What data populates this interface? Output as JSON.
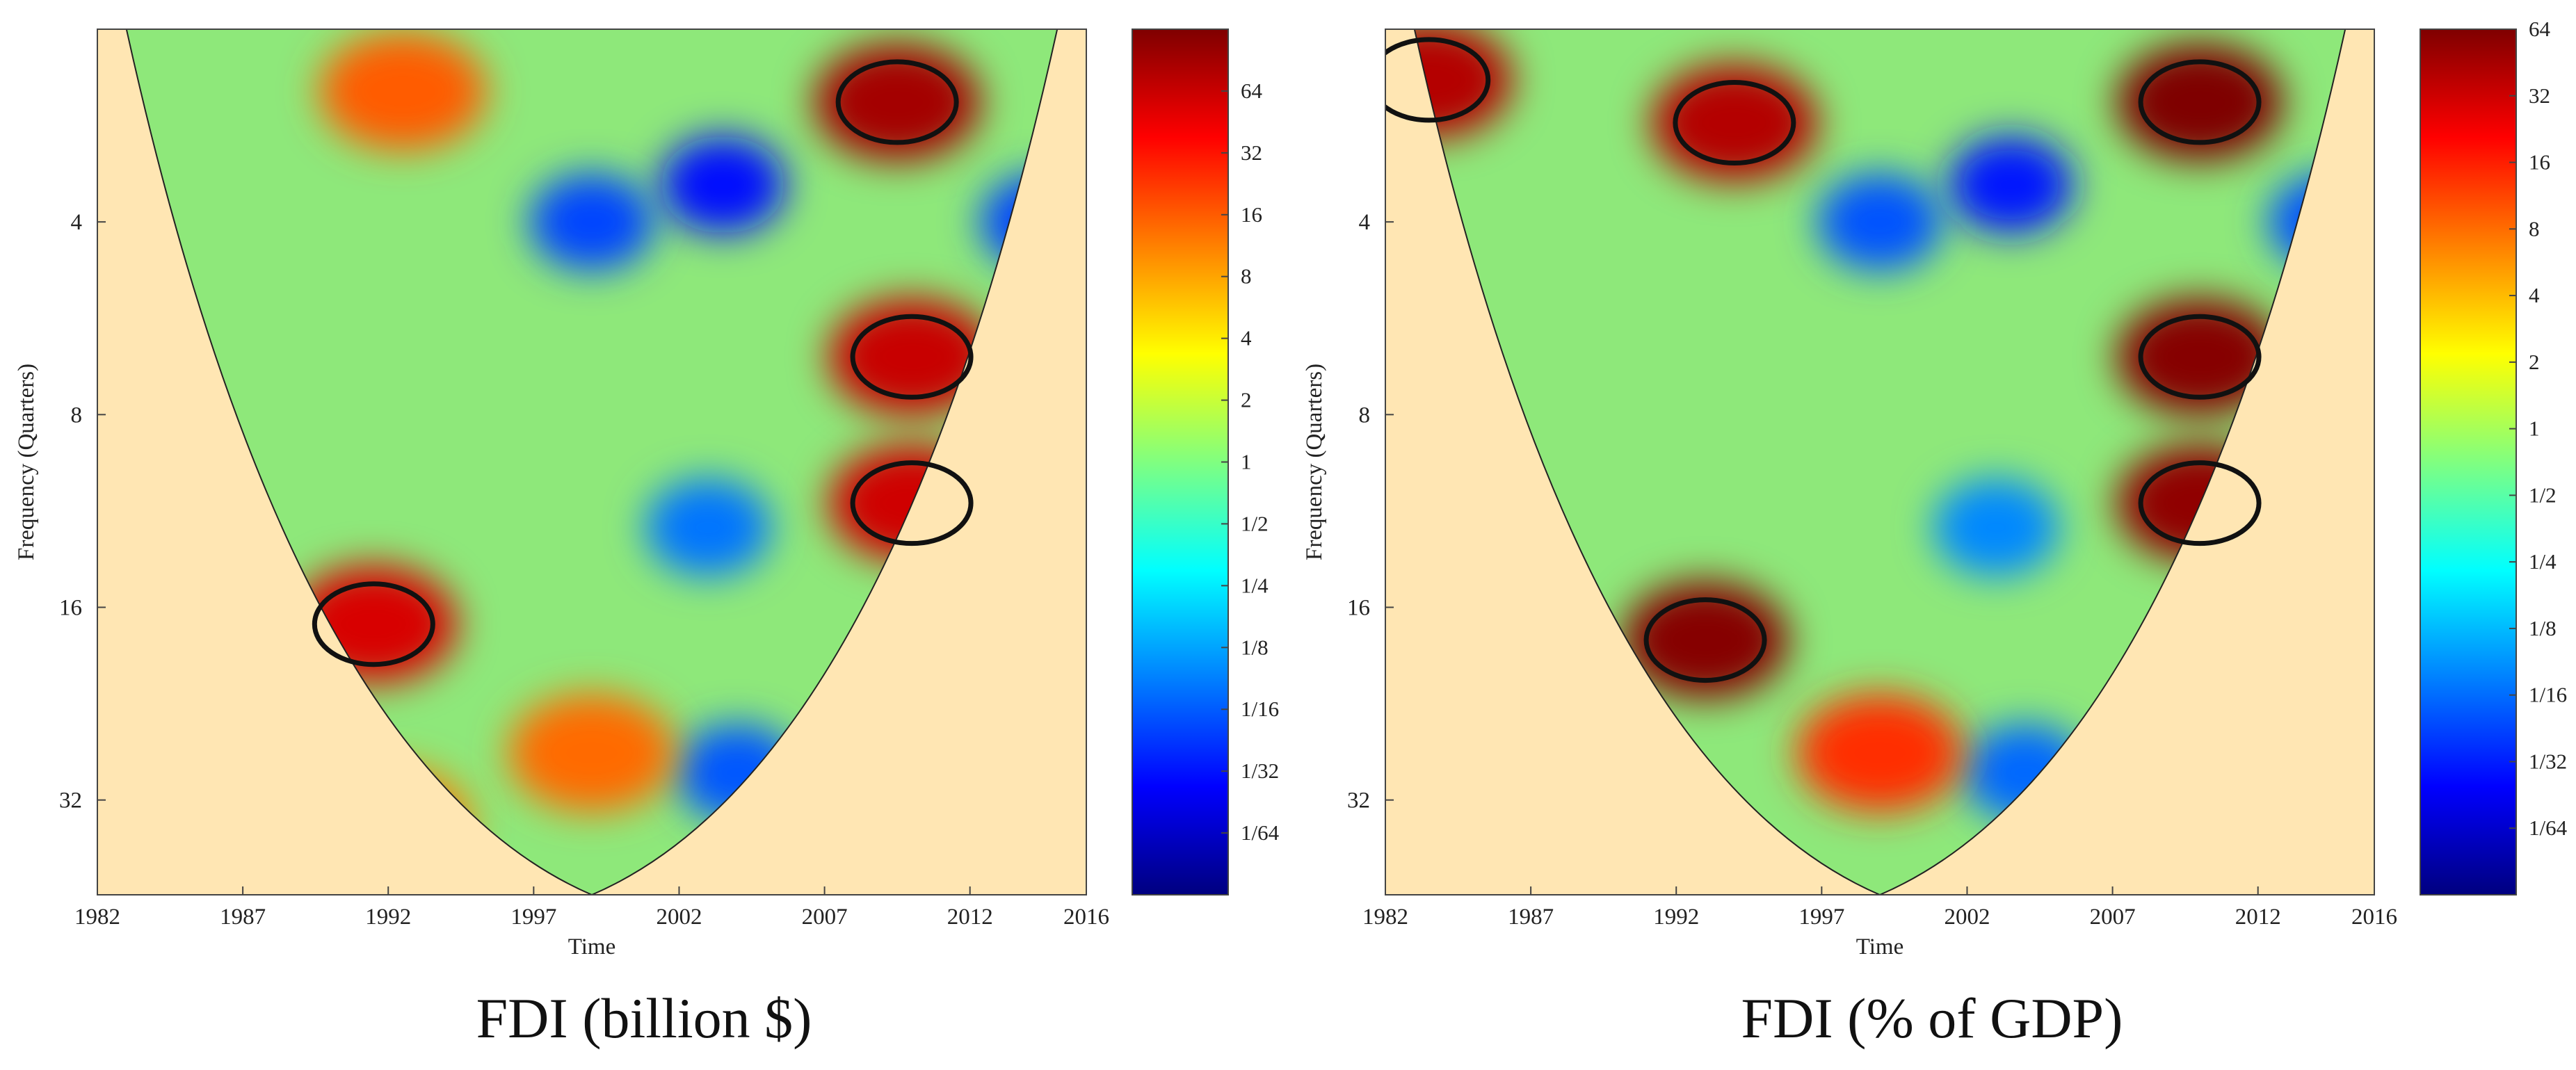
{
  "chart_data": [
    {
      "type": "heatmap",
      "title": "",
      "caption": "FDI (billion $)",
      "xlabel": "Time",
      "ylabel": "Frequency (Quarters)",
      "x_ticks": [
        "1982",
        "1987",
        "1992",
        "1997",
        "2002",
        "2007",
        "2012",
        "2016"
      ],
      "y_ticks": [
        "4",
        "8",
        "16",
        "32"
      ],
      "y_scale": "log2",
      "xlim": [
        1982,
        2016
      ],
      "ylim": [
        2,
        45
      ],
      "colorbar_ticks": [
        "64",
        "32",
        "16",
        "8",
        "4",
        "2",
        "1",
        "1/2",
        "1/4",
        "1/8",
        "1/16",
        "1/32",
        "1/64"
      ],
      "colorbar_scale": "log2",
      "colorbar_range": [
        0.0078125,
        128
      ],
      "colormap": [
        "#00007f",
        "#0000ff",
        "#0080ff",
        "#00ffff",
        "#80ff80",
        "#ffff00",
        "#ff8000",
        "#ff0000",
        "#7f0000"
      ],
      "cone_of_influence": {
        "apex_x": 1999,
        "apex_y": 45,
        "left_top_x": 1983,
        "right_top_x": 2015
      },
      "hot_regions": [
        {
          "x": 2009.5,
          "y": 2.6,
          "power": 90,
          "significant": true
        },
        {
          "x": 2010,
          "y": 6.5,
          "power": 64,
          "significant": true
        },
        {
          "x": 2010,
          "y": 11,
          "power": 60,
          "significant": true
        },
        {
          "x": 1991.5,
          "y": 17,
          "power": 55,
          "significant": true
        },
        {
          "x": 1992.5,
          "y": 2.5,
          "power": 16,
          "significant": false
        },
        {
          "x": 1999,
          "y": 27,
          "power": 14,
          "significant": false
        },
        {
          "x": 1992,
          "y": 35,
          "power": 12,
          "significant": false
        }
      ],
      "cold_regions": [
        {
          "x": 2003.5,
          "y": 3.5,
          "power": 0.03
        },
        {
          "x": 1999,
          "y": 4,
          "power": 0.05
        },
        {
          "x": 2003,
          "y": 12,
          "power": 0.08
        },
        {
          "x": 2004,
          "y": 29,
          "power": 0.06
        },
        {
          "x": 2014.5,
          "y": 4,
          "power": 0.05
        }
      ]
    },
    {
      "type": "heatmap",
      "title": "",
      "caption": "FDI (% of GDP)",
      "xlabel": "Time",
      "ylabel": "Frequency (Quarters)",
      "x_ticks": [
        "1982",
        "1987",
        "1992",
        "1997",
        "2002",
        "2007",
        "2012",
        "2016"
      ],
      "y_ticks": [
        "4",
        "8",
        "16",
        "32"
      ],
      "y_scale": "log2",
      "xlim": [
        1982,
        2016
      ],
      "ylim": [
        2,
        45
      ],
      "colorbar_ticks": [
        "64",
        "32",
        "16",
        "8",
        "4",
        "2",
        "1",
        "1/2",
        "1/4",
        "1/8",
        "1/16",
        "1/32",
        "1/64"
      ],
      "colorbar_scale": "log2",
      "colorbar_range": [
        0.0078125,
        64
      ],
      "colormap": [
        "#00007f",
        "#0000ff",
        "#0080ff",
        "#00ffff",
        "#80ff80",
        "#ffff00",
        "#ff8000",
        "#ff0000",
        "#7f0000"
      ],
      "cone_of_influence": {
        "apex_x": 1999,
        "apex_y": 45,
        "left_top_x": 1983,
        "right_top_x": 2015
      },
      "hot_regions": [
        {
          "x": 2010,
          "y": 2.6,
          "power": 90,
          "significant": true
        },
        {
          "x": 1994,
          "y": 2.8,
          "power": 40,
          "significant": true
        },
        {
          "x": 2010,
          "y": 6.5,
          "power": 60,
          "significant": true
        },
        {
          "x": 2010,
          "y": 11,
          "power": 55,
          "significant": true
        },
        {
          "x": 1993,
          "y": 18,
          "power": 60,
          "significant": true
        },
        {
          "x": 1983.5,
          "y": 2.4,
          "power": 40,
          "significant": true
        },
        {
          "x": 1999,
          "y": 27,
          "power": 14,
          "significant": false
        }
      ],
      "cold_regions": [
        {
          "x": 2003.5,
          "y": 3.5,
          "power": 0.03
        },
        {
          "x": 1999,
          "y": 4,
          "power": 0.05
        },
        {
          "x": 2003,
          "y": 12,
          "power": 0.08
        },
        {
          "x": 2004,
          "y": 29,
          "power": 0.06
        },
        {
          "x": 2014.5,
          "y": 4,
          "power": 0.05
        }
      ]
    }
  ]
}
